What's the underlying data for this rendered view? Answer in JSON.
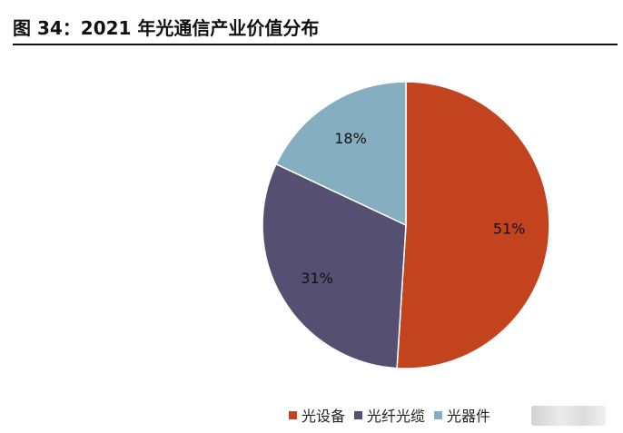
{
  "title": "图 34：2021 年光通信产业价值分布",
  "chart_data": {
    "type": "pie",
    "title": "",
    "slices": [
      {
        "name": "光设备",
        "value": 51,
        "label": "51%",
        "color": "#C4431F"
      },
      {
        "name": "光纤光缆",
        "value": 31,
        "label": "31%",
        "color": "#555071"
      },
      {
        "name": "光器件",
        "value": 18,
        "label": "18%",
        "color": "#85AEC1"
      }
    ],
    "legend_position": "bottom"
  }
}
